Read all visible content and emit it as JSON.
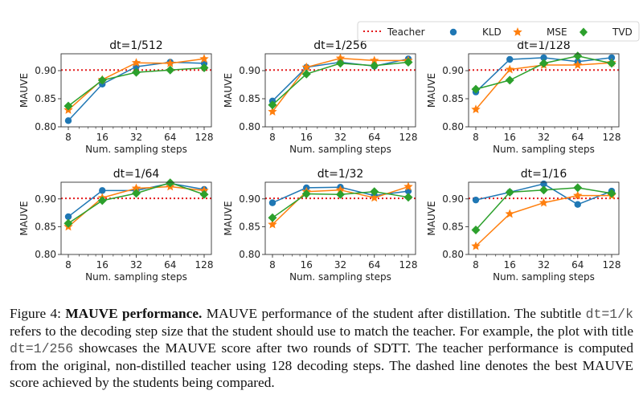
{
  "chart_data": [
    {
      "type": "line",
      "title": "dt=1/512",
      "xlabel": "Num. sampling steps",
      "ylabel": "MAUVE",
      "x": [
        8,
        16,
        32,
        64,
        128
      ],
      "xticks": [
        "8",
        "16",
        "32",
        "64",
        "128"
      ],
      "xscale": "log2",
      "ylim": [
        0.8,
        0.93
      ],
      "yticks": [
        "0.80",
        "0.85",
        "0.90"
      ],
      "teacher": 0.901,
      "series": [
        {
          "name": "KLD",
          "values": [
            0.811,
            0.876,
            0.907,
            0.915,
            0.913
          ]
        },
        {
          "name": "MSE",
          "values": [
            0.83,
            0.884,
            0.914,
            0.913,
            0.921
          ]
        },
        {
          "name": "TVD",
          "values": [
            0.837,
            0.883,
            0.897,
            0.901,
            0.905
          ]
        }
      ]
    },
    {
      "type": "line",
      "title": "dt=1/256",
      "xlabel": "Num. sampling steps",
      "ylabel": "MAUVE",
      "x": [
        8,
        16,
        32,
        64,
        128
      ],
      "xticks": [
        "8",
        "16",
        "32",
        "64",
        "128"
      ],
      "xscale": "log2",
      "ylim": [
        0.8,
        0.93
      ],
      "yticks": [
        "0.80",
        "0.85",
        "0.90"
      ],
      "teacher": 0.901,
      "series": [
        {
          "name": "KLD",
          "values": [
            0.846,
            0.906,
            0.915,
            0.908,
            0.921
          ]
        },
        {
          "name": "MSE",
          "values": [
            0.827,
            0.906,
            0.922,
            0.918,
            0.918
          ]
        },
        {
          "name": "TVD",
          "values": [
            0.839,
            0.894,
            0.913,
            0.909,
            0.915
          ]
        }
      ]
    },
    {
      "type": "line",
      "title": "dt=1/128",
      "xlabel": "Num. sampling steps",
      "ylabel": "MAUVE",
      "x": [
        8,
        16,
        32,
        64,
        128
      ],
      "xticks": [
        "8",
        "16",
        "32",
        "64",
        "128"
      ],
      "xscale": "log2",
      "ylim": [
        0.8,
        0.93
      ],
      "yticks": [
        "0.80",
        "0.85",
        "0.90"
      ],
      "teacher": 0.901,
      "series": [
        {
          "name": "KLD",
          "values": [
            0.862,
            0.92,
            0.923,
            0.916,
            0.923
          ]
        },
        {
          "name": "MSE",
          "values": [
            0.831,
            0.902,
            0.91,
            0.91,
            0.914
          ]
        },
        {
          "name": "TVD",
          "values": [
            0.867,
            0.883,
            0.913,
            0.926,
            0.913
          ]
        }
      ]
    },
    {
      "type": "line",
      "title": "dt=1/64",
      "xlabel": "Num. sampling steps",
      "ylabel": "MAUVE",
      "x": [
        8,
        16,
        32,
        64,
        128
      ],
      "xticks": [
        "8",
        "16",
        "32",
        "64",
        "128"
      ],
      "xscale": "log2",
      "ylim": [
        0.8,
        0.93
      ],
      "yticks": [
        "0.80",
        "0.85",
        "0.90"
      ],
      "teacher": 0.901,
      "series": [
        {
          "name": "KLD",
          "values": [
            0.868,
            0.915,
            0.915,
            0.928,
            0.917
          ]
        },
        {
          "name": "MSE",
          "values": [
            0.85,
            0.902,
            0.919,
            0.922,
            0.915
          ]
        },
        {
          "name": "TVD",
          "values": [
            0.856,
            0.897,
            0.91,
            0.929,
            0.908
          ]
        }
      ]
    },
    {
      "type": "line",
      "title": "dt=1/32",
      "xlabel": "Num. sampling steps",
      "ylabel": "MAUVE",
      "x": [
        8,
        16,
        32,
        64,
        128
      ],
      "xticks": [
        "8",
        "16",
        "32",
        "64",
        "128"
      ],
      "xscale": "log2",
      "ylim": [
        0.8,
        0.93
      ],
      "yticks": [
        "0.80",
        "0.85",
        "0.90"
      ],
      "teacher": 0.901,
      "series": [
        {
          "name": "KLD",
          "values": [
            0.893,
            0.92,
            0.921,
            0.906,
            0.914
          ]
        },
        {
          "name": "MSE",
          "values": [
            0.854,
            0.913,
            0.916,
            0.902,
            0.922
          ]
        },
        {
          "name": "TVD",
          "values": [
            0.866,
            0.909,
            0.908,
            0.913,
            0.903
          ]
        }
      ]
    },
    {
      "type": "line",
      "title": "dt=1/16",
      "xlabel": "Num. sampling steps",
      "ylabel": "MAUVE",
      "x": [
        8,
        16,
        32,
        64,
        128
      ],
      "xticks": [
        "8",
        "16",
        "32",
        "64",
        "128"
      ],
      "xscale": "log2",
      "ylim": [
        0.8,
        0.93
      ],
      "yticks": [
        "0.80",
        "0.85",
        "0.90"
      ],
      "teacher": 0.901,
      "series": [
        {
          "name": "KLD",
          "values": [
            0.898,
            0.912,
            0.927,
            0.89,
            0.914
          ]
        },
        {
          "name": "MSE",
          "values": [
            0.815,
            0.873,
            0.893,
            0.906,
            0.906
          ]
        },
        {
          "name": "TVD",
          "values": [
            0.844,
            0.912,
            0.916,
            0.92,
            0.91
          ]
        }
      ]
    }
  ],
  "legend": {
    "placement": "top-right",
    "entries": [
      {
        "name": "Teacher",
        "marker": "dotted-line",
        "color": "#e41a1c"
      },
      {
        "name": "KLD",
        "marker": "circle",
        "color": "#1f77b4"
      },
      {
        "name": "MSE",
        "marker": "star",
        "color": "#ff7f0e"
      },
      {
        "name": "TVD",
        "marker": "diamond",
        "color": "#2ca02c"
      }
    ]
  },
  "colors": {
    "KLD": "#1f77b4",
    "MSE": "#ff7f0e",
    "TVD": "#2ca02c",
    "teacher": "#e41a1c"
  },
  "caption": {
    "label": "Figure 4:",
    "bold_title": "MAUVE performance.",
    "text_1": " MAUVE performance of the student after distillation. The subtitle ",
    "code_1": "dt=1/k",
    "text_2": " refers to the decoding step size that the student should use to match the teacher. For example, the plot with title ",
    "code_2": "dt=1/256",
    "text_3": " showcases the MAUVE score after two rounds of SDTT. The teacher performance is computed from the original, non-distilled teacher using 128 decoding steps. The dashed line denotes the best MAUVE score achieved by the students being compared."
  }
}
